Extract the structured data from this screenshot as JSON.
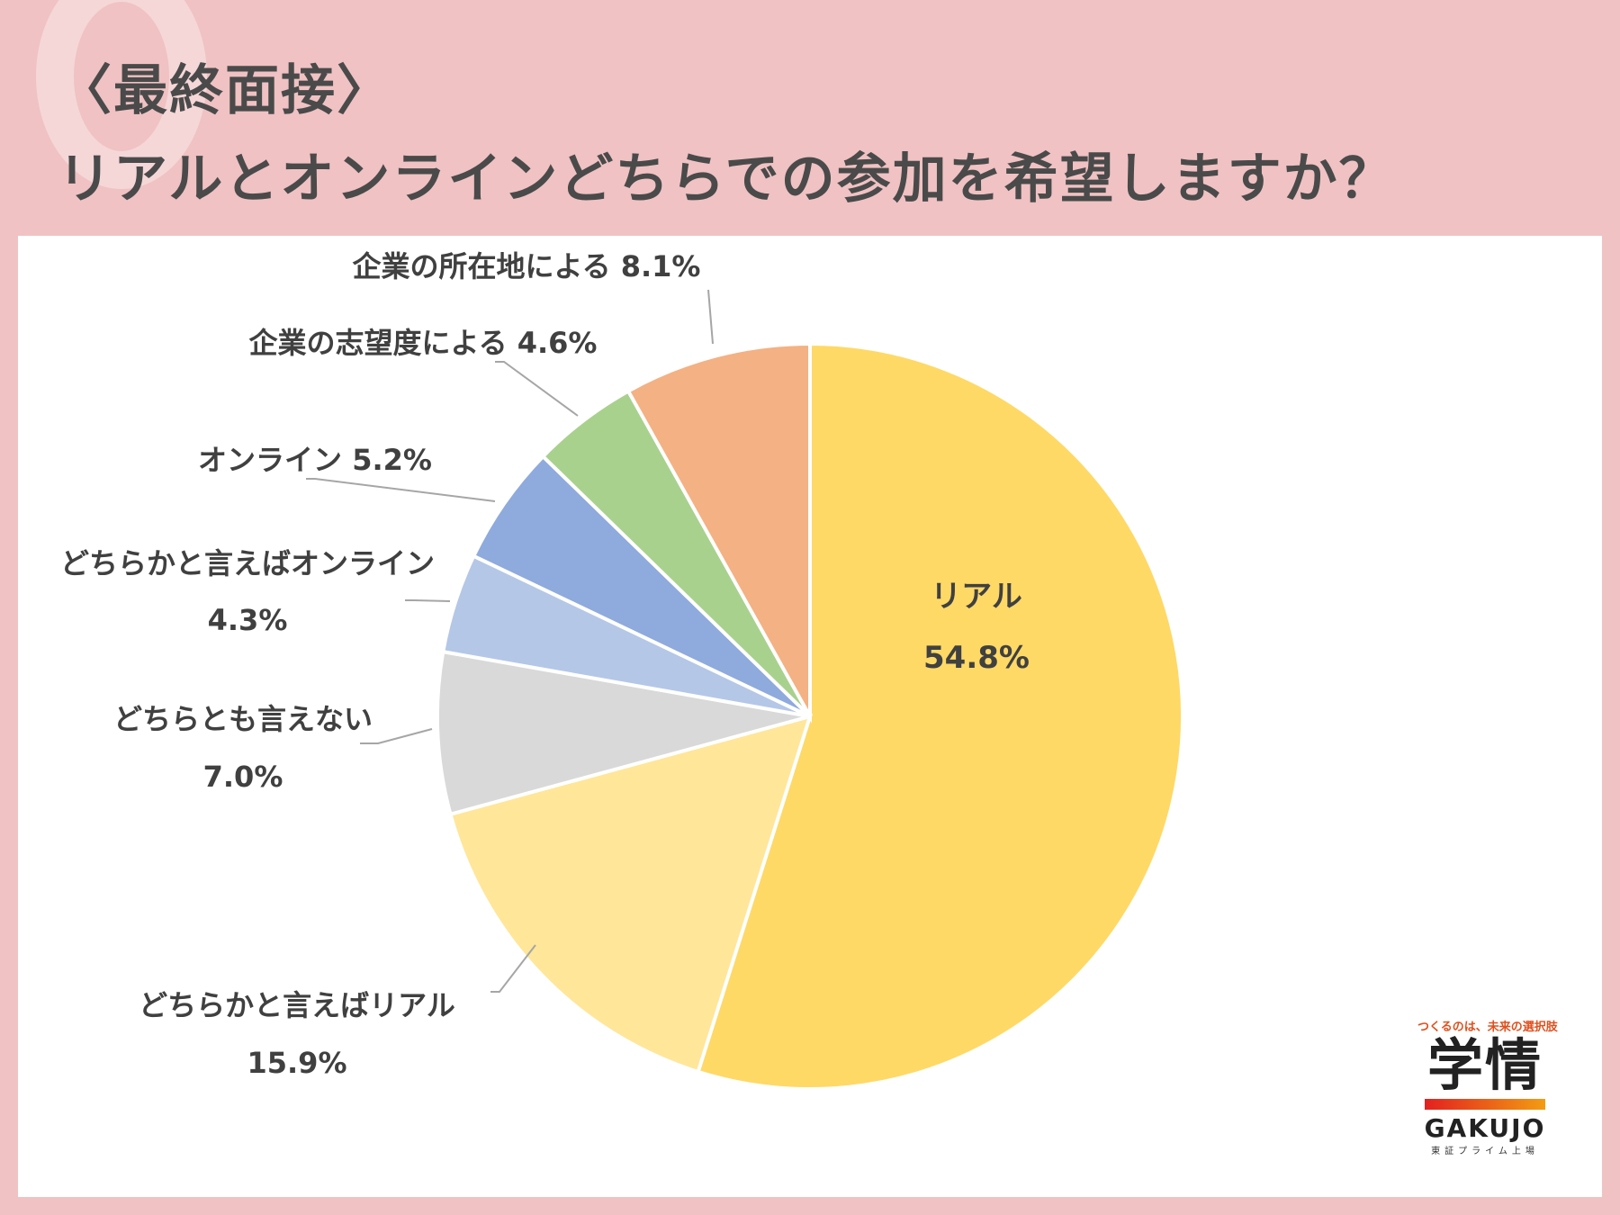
{
  "header": {
    "title_line1": "〈最終面接〉",
    "title_line2": "リアルとオンラインどちらでの参加を希望しますか？"
  },
  "chart_data": {
    "type": "pie",
    "categories": [
      "リアル",
      "どちらかと言えばリアル",
      "どちらとも言えない",
      "どちらかと言えばオンライン",
      "オンライン",
      "企業の志望度による",
      "企業の所在地による"
    ],
    "values": [
      54.8,
      15.9,
      7.0,
      4.3,
      5.2,
      4.6,
      8.1
    ],
    "value_labels": [
      "54.8%",
      "15.9%",
      "7.0%",
      "4.3%",
      "5.2%",
      "4.6%",
      "8.1%"
    ],
    "colors": [
      "#ffd966",
      "#ffe699",
      "#d9d9d9",
      "#b4c7e7",
      "#8faadc",
      "#a9d18e",
      "#f4b183"
    ],
    "title": "",
    "legend": "none"
  },
  "logo": {
    "tagline": "つくるのは、未来の選択肢",
    "name": "学情",
    "name_en": "GAKUJO",
    "sub": "東証プライム上場"
  }
}
